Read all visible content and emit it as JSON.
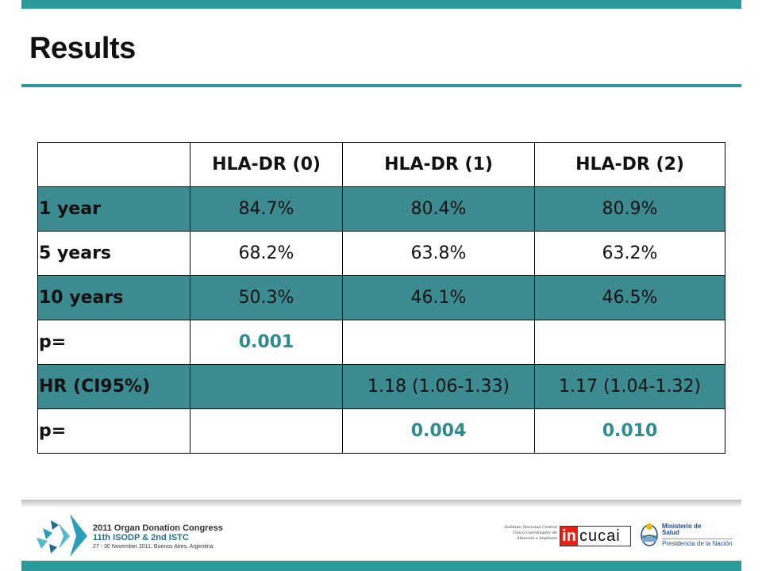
{
  "slide": {
    "title": "Results",
    "accent_color": "#2a9a9a",
    "row_fill_color": "#3b8b91"
  },
  "table": {
    "columns": [
      "",
      "HLA-DR (0)",
      "HLA-DR (1)",
      "HLA-DR (2)"
    ],
    "rows": [
      {
        "label": "1 year",
        "cells": [
          "84.7%",
          "80.4%",
          "80.9%"
        ],
        "shaded": true
      },
      {
        "label": "5 years",
        "cells": [
          "68.2%",
          "63.8%",
          "63.2%"
        ],
        "shaded": false
      },
      {
        "label": "10 years",
        "cells": [
          "50.3%",
          "46.1%",
          "46.5%"
        ],
        "shaded": true
      },
      {
        "label": "p=",
        "cells": [
          "0.001",
          "",
          ""
        ],
        "shaded": false
      },
      {
        "label": "HR (CI95%)",
        "cells": [
          "",
          "1.18 (1.06-1.33)",
          "1.17 (1.04-1.32)"
        ],
        "shaded": true
      },
      {
        "label": "p=",
        "cells": [
          "",
          "0.004",
          "0.010"
        ],
        "shaded": false
      }
    ]
  },
  "footer": {
    "congress_line1": "2011 Organ Donation Congress",
    "congress_line2": "11th ISODP & 2nd ISTC",
    "congress_line3": "27 - 30 November 2011, Buenos Aires, Argentina",
    "instituto_text": "Instituto Nacional Central Único Coordinador de Ablación e Implante",
    "incucai_in": "in",
    "incucai_rest": "cucai",
    "ministerio_line1": "Ministerio de",
    "ministerio_line2": "Salud",
    "ministerio_line3": "Presidencia de la Nación"
  }
}
